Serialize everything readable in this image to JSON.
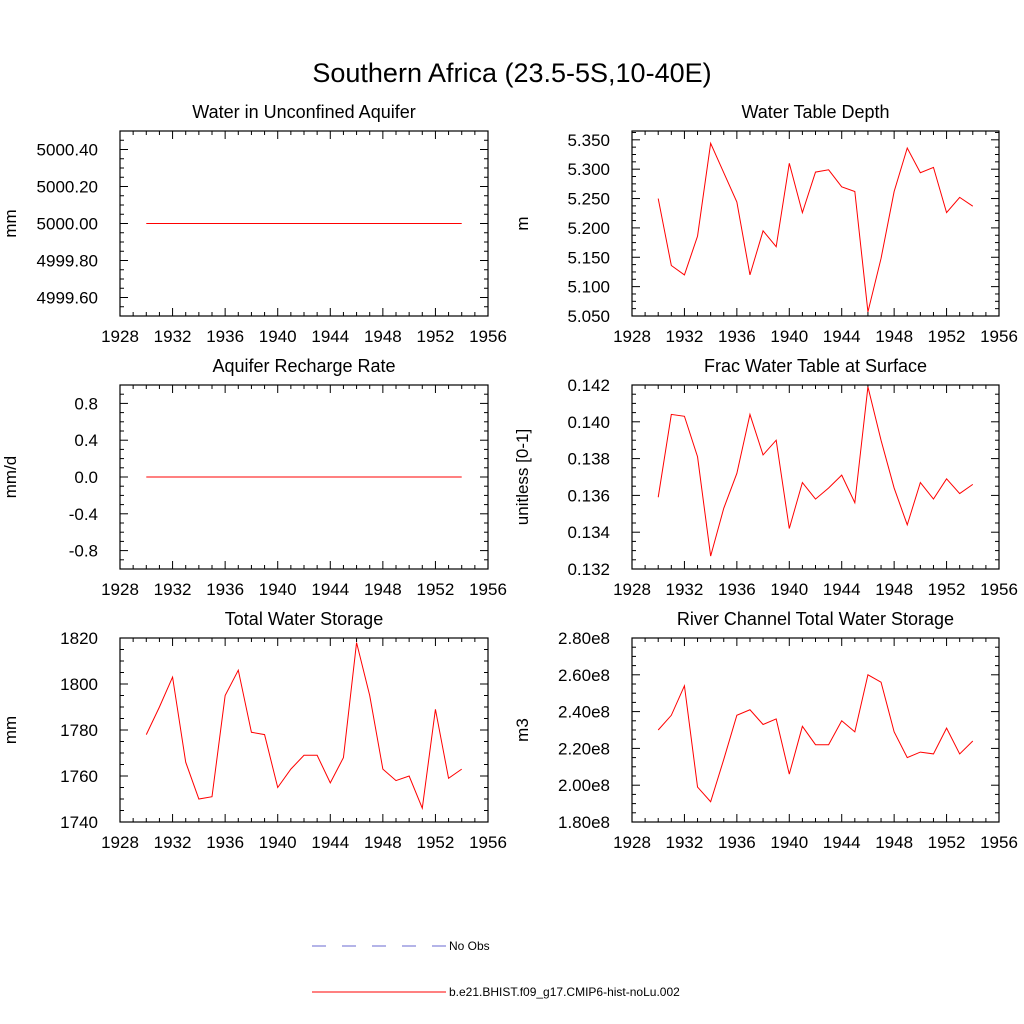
{
  "figure": {
    "title": "Southern Africa (23.5-5S,10-40E)"
  },
  "colors": {
    "model_line": "#ff0000",
    "obs_line": "#6a6ad0",
    "frame": "#000000"
  },
  "legend": [
    {
      "label": "No Obs",
      "style": "dashed",
      "color": "#6a6ad0"
    },
    {
      "label": "b.e21.BHIST.f09_g17.CMIP6-hist-noLu.002",
      "style": "solid",
      "color": "#ff0000"
    }
  ],
  "chart_data": [
    {
      "type": "line",
      "title": "Water in Unconfined Aquifer",
      "xlabel": "",
      "ylabel": "mm",
      "xlim": [
        1928,
        1956
      ],
      "ylim": [
        4999.5,
        5000.5
      ],
      "x_ticks": [
        1928,
        1932,
        1936,
        1940,
        1944,
        1948,
        1952,
        1956
      ],
      "y_ticks": [
        4999.6,
        4999.8,
        5000.0,
        5000.2,
        5000.4
      ],
      "y_tick_labels": [
        "4999.60",
        "4999.80",
        "5000.00",
        "5000.20",
        "5000.40"
      ],
      "series": [
        {
          "x": [
            1930,
            1931,
            1932,
            1933,
            1934,
            1935,
            1936,
            1937,
            1938,
            1939,
            1940,
            1941,
            1942,
            1943,
            1944,
            1945,
            1946,
            1947,
            1948,
            1949,
            1950,
            1951,
            1952,
            1953,
            1954
          ],
          "values": [
            5000.0,
            5000.0,
            5000.0,
            5000.0,
            5000.0,
            5000.0,
            5000.0,
            5000.0,
            5000.0,
            5000.0,
            5000.0,
            5000.0,
            5000.0,
            5000.0,
            5000.0,
            5000.0,
            5000.0,
            5000.0,
            5000.0,
            5000.0,
            5000.0,
            5000.0,
            5000.0,
            5000.0,
            5000.0
          ]
        }
      ]
    },
    {
      "type": "line",
      "title": "Water Table Depth",
      "xlabel": "",
      "ylabel": "m",
      "xlim": [
        1928,
        1956
      ],
      "ylim": [
        5.05,
        5.365
      ],
      "x_ticks": [
        1928,
        1932,
        1936,
        1940,
        1944,
        1948,
        1952,
        1956
      ],
      "y_ticks": [
        5.05,
        5.1,
        5.15,
        5.2,
        5.25,
        5.3,
        5.35
      ],
      "y_tick_labels": [
        "5.050",
        "5.100",
        "5.150",
        "5.200",
        "5.250",
        "5.300",
        "5.350"
      ],
      "series": [
        {
          "x": [
            1930,
            1931,
            1932,
            1933,
            1934,
            1935,
            1936,
            1937,
            1938,
            1939,
            1940,
            1941,
            1942,
            1943,
            1944,
            1945,
            1946,
            1947,
            1948,
            1949,
            1950,
            1951,
            1952,
            1953,
            1954
          ],
          "values": [
            5.25,
            5.136,
            5.12,
            5.186,
            5.344,
            5.294,
            5.244,
            5.12,
            5.195,
            5.168,
            5.31,
            5.226,
            5.295,
            5.299,
            5.27,
            5.262,
            5.057,
            5.148,
            5.262,
            5.336,
            5.294,
            5.303,
            5.226,
            5.252,
            5.237
          ]
        }
      ]
    },
    {
      "type": "line",
      "title": "Aquifer Recharge Rate",
      "xlabel": "",
      "ylabel": "mm/d",
      "xlim": [
        1928,
        1956
      ],
      "ylim": [
        -1.0,
        1.0
      ],
      "x_ticks": [
        1928,
        1932,
        1936,
        1940,
        1944,
        1948,
        1952,
        1956
      ],
      "y_ticks": [
        -0.8,
        -0.4,
        0.0,
        0.4,
        0.8
      ],
      "y_tick_labels": [
        "-0.8",
        "-0.4",
        "0.0",
        "0.4",
        "0.8"
      ],
      "series": [
        {
          "x": [
            1930,
            1931,
            1932,
            1933,
            1934,
            1935,
            1936,
            1937,
            1938,
            1939,
            1940,
            1941,
            1942,
            1943,
            1944,
            1945,
            1946,
            1947,
            1948,
            1949,
            1950,
            1951,
            1952,
            1953,
            1954
          ],
          "values": [
            0,
            0,
            0,
            0,
            0,
            0,
            0,
            0,
            0,
            0,
            0,
            0,
            0,
            0,
            0,
            0,
            0,
            0,
            0,
            0,
            0,
            0,
            0,
            0,
            0
          ]
        }
      ]
    },
    {
      "type": "line",
      "title": "Frac Water Table at Surface",
      "xlabel": "",
      "ylabel": "unitless [0-1]",
      "xlim": [
        1928,
        1956
      ],
      "ylim": [
        0.132,
        0.142
      ],
      "x_ticks": [
        1928,
        1932,
        1936,
        1940,
        1944,
        1948,
        1952,
        1956
      ],
      "y_ticks": [
        0.132,
        0.134,
        0.136,
        0.138,
        0.14,
        0.142
      ],
      "y_tick_labels": [
        "0.132",
        "0.134",
        "0.136",
        "0.138",
        "0.140",
        "0.142"
      ],
      "series": [
        {
          "x": [
            1930,
            1931,
            1932,
            1933,
            1934,
            1935,
            1936,
            1937,
            1938,
            1939,
            1940,
            1941,
            1942,
            1943,
            1944,
            1945,
            1946,
            1947,
            1948,
            1949,
            1950,
            1951,
            1952,
            1953,
            1954
          ],
          "values": [
            0.1359,
            0.1404,
            0.1403,
            0.1381,
            0.1327,
            0.1353,
            0.1372,
            0.1404,
            0.1382,
            0.139,
            0.1342,
            0.1367,
            0.1358,
            0.1364,
            0.1371,
            0.1356,
            0.1419,
            0.139,
            0.1364,
            0.1344,
            0.1367,
            0.1358,
            0.1369,
            0.1361,
            0.1366
          ]
        }
      ]
    },
    {
      "type": "line",
      "title": "Total Water Storage",
      "xlabel": "",
      "ylabel": "mm",
      "xlim": [
        1928,
        1956
      ],
      "ylim": [
        1740,
        1820
      ],
      "x_ticks": [
        1928,
        1932,
        1936,
        1940,
        1944,
        1948,
        1952,
        1956
      ],
      "y_ticks": [
        1740,
        1760,
        1780,
        1800,
        1820
      ],
      "y_tick_labels": [
        "1740",
        "1760",
        "1780",
        "1800",
        "1820"
      ],
      "series": [
        {
          "x": [
            1930,
            1931,
            1932,
            1933,
            1934,
            1935,
            1936,
            1937,
            1938,
            1939,
            1940,
            1941,
            1942,
            1943,
            1944,
            1945,
            1946,
            1947,
            1948,
            1949,
            1950,
            1951,
            1952,
            1953,
            1954
          ],
          "values": [
            1778,
            1790,
            1803,
            1766,
            1750,
            1751,
            1795,
            1806,
            1779,
            1778,
            1755,
            1763,
            1769,
            1769,
            1757,
            1768,
            1818,
            1795,
            1763,
            1758,
            1760,
            1746,
            1789,
            1759,
            1763
          ]
        }
      ]
    },
    {
      "type": "line",
      "title": "River Channel Total Water Storage",
      "xlabel": "",
      "ylabel": "m3",
      "xlim": [
        1928,
        1956
      ],
      "ylim": [
        180000000,
        280000000
      ],
      "x_ticks": [
        1928,
        1932,
        1936,
        1940,
        1944,
        1948,
        1952,
        1956
      ],
      "y_ticks": [
        180000000,
        200000000,
        220000000,
        240000000,
        260000000,
        280000000
      ],
      "y_tick_labels": [
        "1.80e8",
        "2.00e8",
        "2.20e8",
        "2.40e8",
        "2.60e8",
        "2.80e8"
      ],
      "series": [
        {
          "x": [
            1930,
            1931,
            1932,
            1933,
            1934,
            1935,
            1936,
            1937,
            1938,
            1939,
            1940,
            1941,
            1942,
            1943,
            1944,
            1945,
            1946,
            1947,
            1948,
            1949,
            1950,
            1951,
            1952,
            1953,
            1954
          ],
          "values": [
            230000000,
            238000000,
            254000000,
            199000000,
            191000000,
            214000000,
            238000000,
            241000000,
            233000000,
            236000000,
            206000000,
            232000000,
            222000000,
            222000000,
            235000000,
            229000000,
            260000000,
            256000000,
            229000000,
            215000000,
            218000000,
            217000000,
            231000000,
            217000000,
            224000000
          ]
        }
      ]
    }
  ]
}
